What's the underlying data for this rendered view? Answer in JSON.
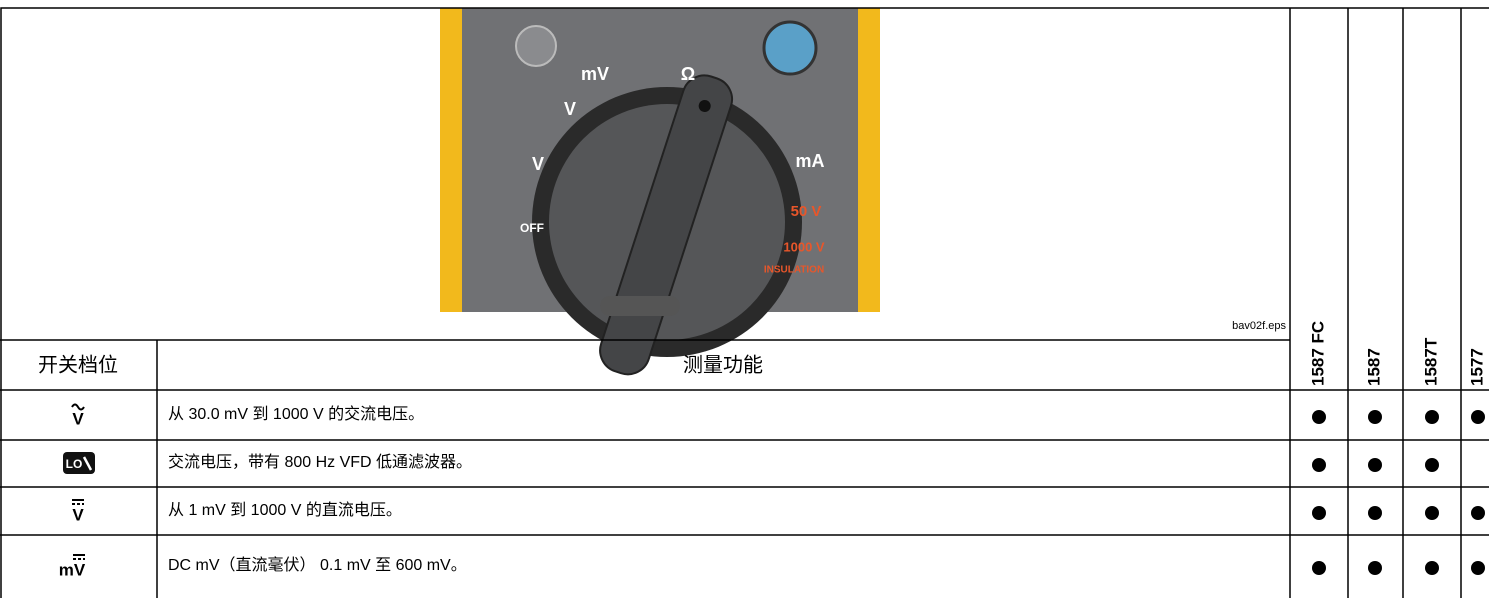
{
  "image": {
    "labels": [
      "mV",
      "V",
      "Ω",
      "V",
      "mA",
      "OFF",
      "50 V",
      "1000 V",
      "INSULATION"
    ],
    "caption": "bav02f.eps"
  },
  "table": {
    "headers": [
      "开关档位",
      "测量功能"
    ],
    "models": [
      "1587 FC",
      "1587",
      "1587T",
      "1577"
    ],
    "rows": [
      {
        "symbol": "V",
        "text": "从 30.0 mV 到 1000 V 的交流电压。",
        "supported": [
          true,
          true,
          true,
          true
        ]
      },
      {
        "symbol": "LO",
        "text": "交流电压，带有 800 Hz VFD 低通滤波器。",
        "supported": [
          true,
          true,
          true,
          false
        ]
      },
      {
        "symbol": "V",
        "text": "从 1 mV 到 1000 V 的直流电压。",
        "supported": [
          true,
          true,
          true,
          true
        ]
      },
      {
        "symbol": "mV",
        "text": "DC mV（直流毫伏） 0.1 mV 至 600 mV。",
        "supported": [
          true,
          true,
          true,
          true
        ]
      }
    ]
  }
}
